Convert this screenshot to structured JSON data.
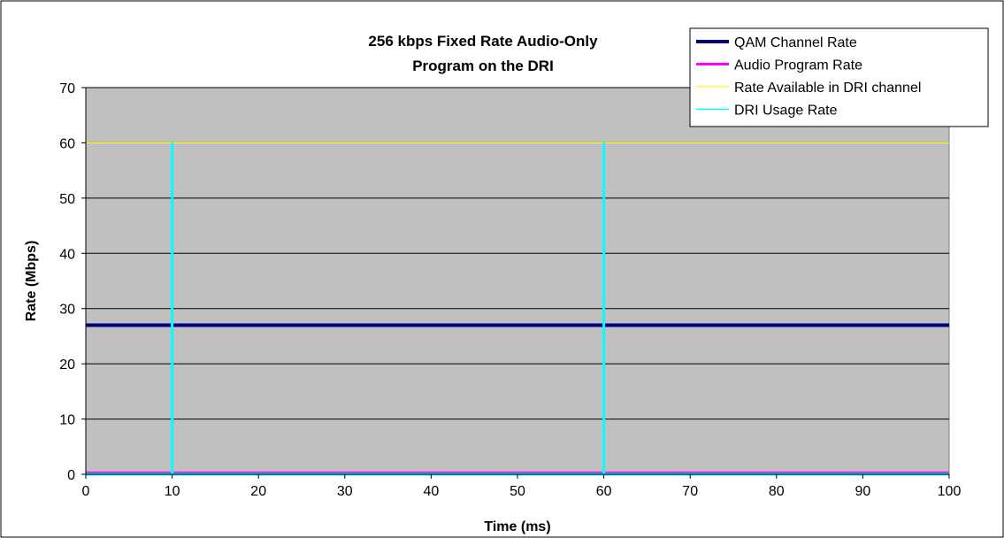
{
  "chart_data": {
    "type": "line",
    "title_lines": [
      "256 kbps Fixed Rate Audio-Only",
      "Program on the DRI"
    ],
    "xlabel": "Time (ms)",
    "ylabel": "Rate (Mbps)",
    "xlim": [
      0,
      100
    ],
    "ylim": [
      0,
      70
    ],
    "x_ticks": [
      0,
      10,
      20,
      30,
      40,
      50,
      60,
      70,
      80,
      90,
      100
    ],
    "y_ticks": [
      0,
      10,
      20,
      30,
      40,
      50,
      60,
      70
    ],
    "grid": "horizontal",
    "plot_background": "#c0c0c0",
    "legend_position": "top-right",
    "series": [
      {
        "name": "QAM Channel Rate",
        "color": "#000080",
        "x": [
          0,
          100
        ],
        "y": [
          27,
          27
        ]
      },
      {
        "name": "Audio Program Rate",
        "color": "#ff00ff",
        "x": [
          0,
          100
        ],
        "y": [
          0.256,
          0.256
        ]
      },
      {
        "name": "Rate Available in DRI channel",
        "color": "#ffff00",
        "x": [
          0,
          100
        ],
        "y": [
          60,
          60
        ]
      },
      {
        "name": "DRI Usage Rate",
        "color": "#00ffff",
        "x": [
          0,
          10,
          10,
          10,
          60,
          60,
          60,
          100
        ],
        "y": [
          0,
          0,
          60,
          0,
          0,
          60,
          0,
          0
        ]
      }
    ]
  }
}
